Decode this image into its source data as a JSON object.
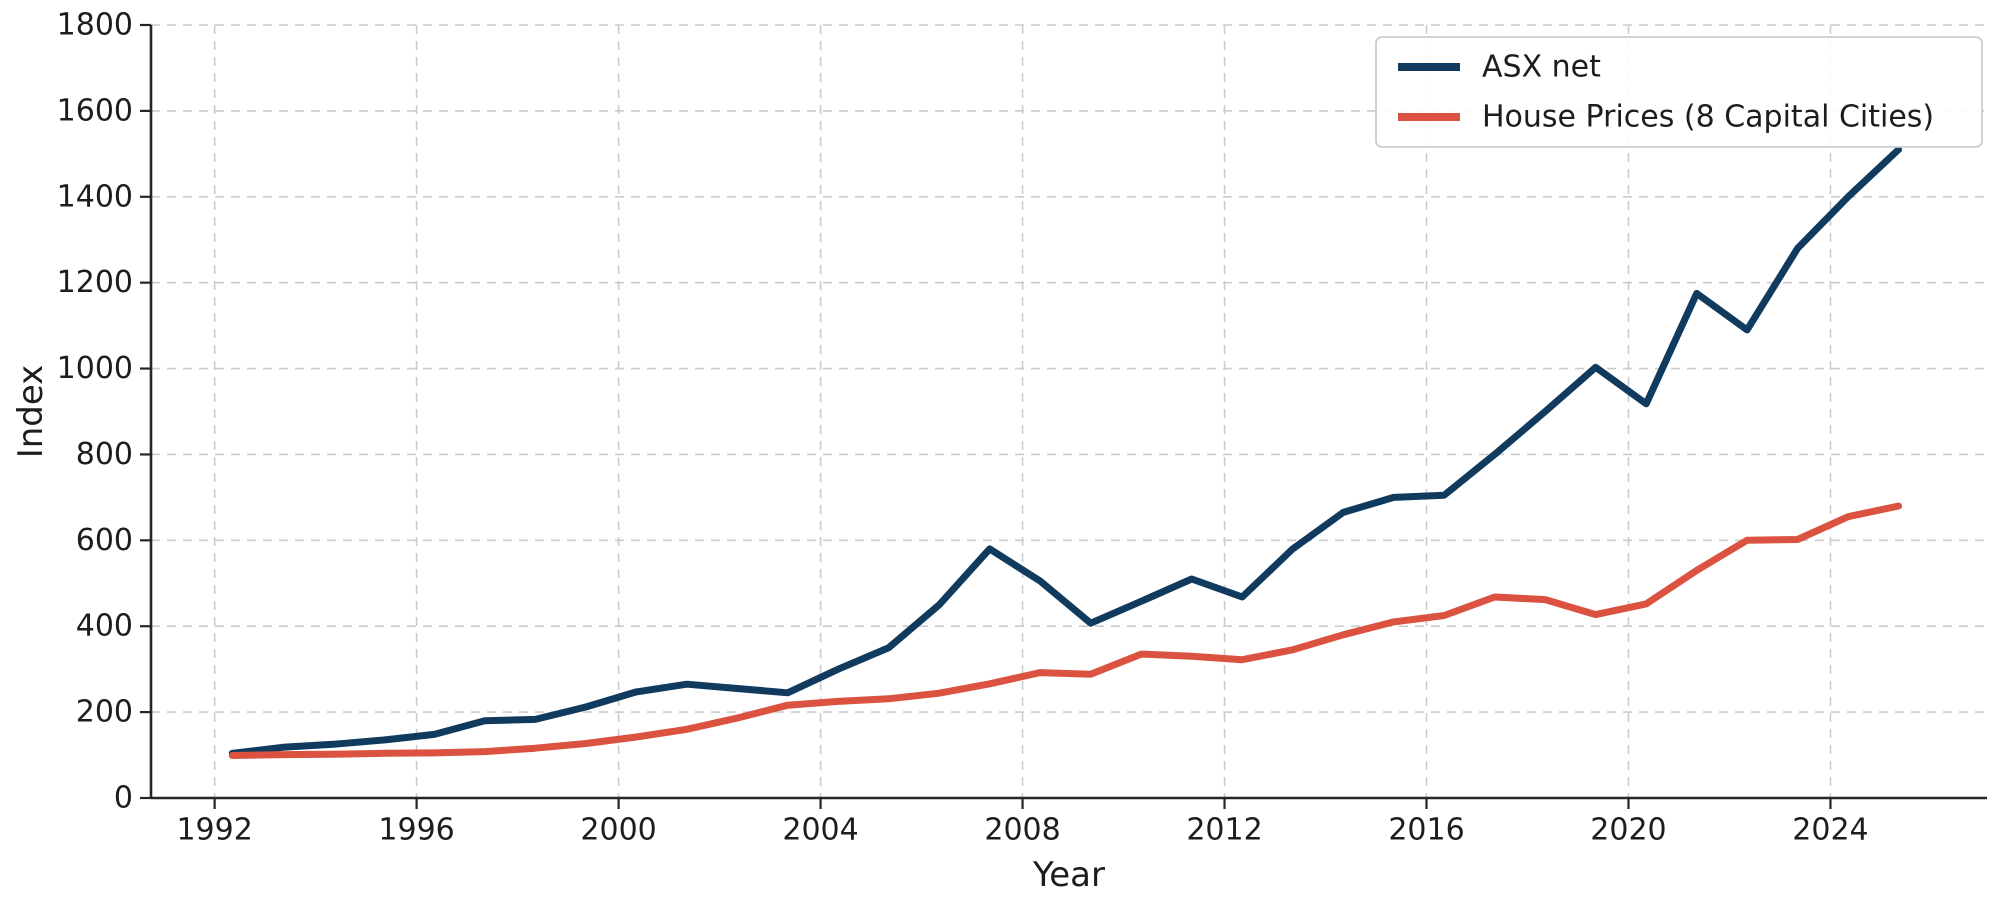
{
  "chart_data": {
    "type": "line",
    "title": "",
    "xlabel": "Year",
    "ylabel": "Index",
    "x": [
      1992,
      1993,
      1994,
      1995,
      1996,
      1997,
      1998,
      1999,
      2000,
      2001,
      2002,
      2003,
      2004,
      2005,
      2006,
      2007,
      2008,
      2009,
      2010,
      2011,
      2012,
      2013,
      2014,
      2015,
      2016,
      2017,
      2018,
      2019,
      2020,
      2021,
      2022,
      2023,
      2024,
      2025
    ],
    "x_plot_offset": 0.35,
    "series": [
      {
        "name": "ASX net",
        "color": "#113b5e",
        "values": [
          104,
          118,
          125,
          135,
          148,
          180,
          183,
          212,
          247,
          265,
          255,
          245,
          300,
          350,
          450,
          580,
          505,
          407,
          458,
          510,
          468,
          580,
          665,
          700,
          705,
          800,
          900,
          1003,
          918,
          1175,
          1090,
          1280,
          1400,
          1510
        ]
      },
      {
        "name": "House Prices (8 Capital Cities)",
        "color": "#db5340",
        "values": [
          99,
          101,
          102,
          104,
          105,
          108,
          116,
          127,
          142,
          160,
          186,
          216,
          225,
          231,
          244,
          266,
          292,
          288,
          335,
          330,
          322,
          345,
          380,
          410,
          425,
          468,
          462,
          427,
          452,
          530,
          600,
          602,
          655,
          680
        ]
      }
    ],
    "xticks": [
      1992,
      1996,
      2000,
      2004,
      2008,
      2012,
      2016,
      2020,
      2024
    ],
    "yticks": [
      0,
      200,
      400,
      600,
      800,
      1000,
      1200,
      1400,
      1600,
      1800
    ],
    "xlim": [
      1990.74,
      2027.1
    ],
    "ylim": [
      0,
      1800
    ],
    "grid": "dashed",
    "grid_color": "#cccccc",
    "axis_color": "#262626",
    "text_color": "#1d1d1d",
    "legend_position": "top-right",
    "legend_border_color": "#cccccc",
    "legend_bg": "#ffffff"
  }
}
